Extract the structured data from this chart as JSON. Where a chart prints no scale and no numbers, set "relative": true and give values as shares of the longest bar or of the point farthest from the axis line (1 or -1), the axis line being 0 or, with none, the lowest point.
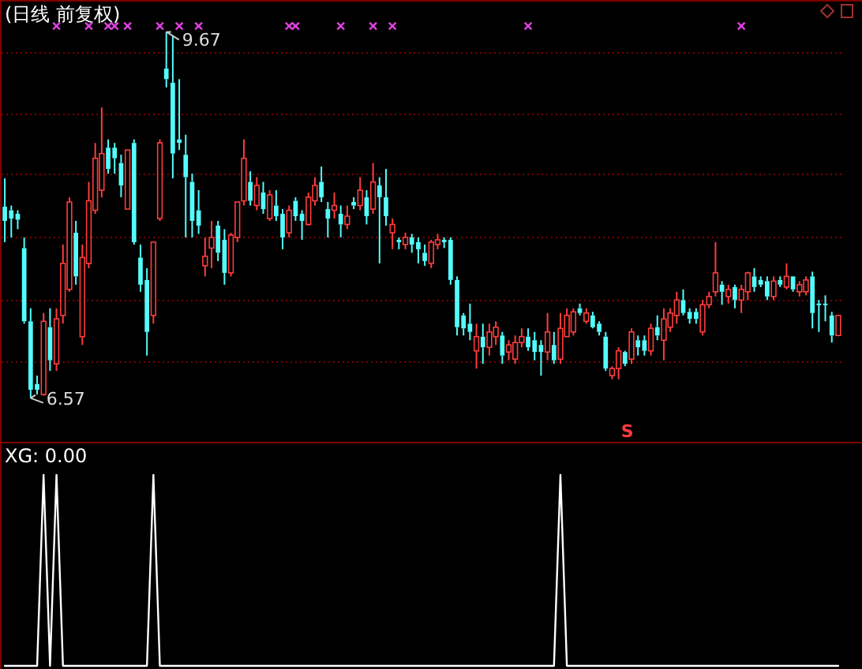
{
  "chart_data": [
    {
      "type": "candlestick",
      "title": "(日线 前复权)",
      "categories": [
        null,
        null,
        null,
        null,
        null,
        null,
        null,
        null,
        null,
        null,
        null,
        null,
        null,
        null,
        null,
        null,
        null,
        null,
        null,
        null,
        null,
        null,
        null,
        null,
        null,
        null,
        null,
        null,
        null,
        null,
        null,
        null,
        null,
        null,
        null,
        null,
        null,
        null,
        null,
        null,
        null,
        null,
        null,
        null,
        null,
        null,
        null,
        null,
        null,
        null,
        null,
        null,
        null,
        null,
        null,
        null,
        null,
        null,
        null,
        null,
        null,
        null,
        null,
        null,
        null,
        null,
        null,
        null,
        null,
        null,
        null,
        null,
        null,
        null,
        null,
        null,
        null,
        null,
        null,
        null,
        null,
        null,
        null,
        null,
        null,
        null,
        null,
        null,
        null,
        null,
        null,
        null,
        null,
        null,
        null,
        null,
        null,
        null,
        null,
        null,
        null,
        null,
        null,
        null,
        null,
        null,
        null,
        null,
        null,
        null,
        null,
        null,
        null,
        null,
        null,
        null,
        null,
        null,
        null,
        null,
        null,
        null,
        null,
        null,
        null,
        null,
        null,
        null,
        null,
        null
      ],
      "ohlc": [
        [
          8.19,
          8.43,
          7.89,
          8.07
        ],
        [
          8.16,
          8.2,
          7.93,
          8.09
        ],
        [
          8.13,
          8.16,
          8.0,
          8.08
        ],
        [
          7.84,
          7.93,
          7.2,
          7.22
        ],
        [
          7.22,
          7.33,
          6.57,
          6.64
        ],
        [
          6.69,
          6.76,
          6.6,
          6.64
        ],
        [
          6.6,
          7.29,
          6.59,
          7.22
        ],
        [
          7.17,
          7.33,
          6.8,
          6.89
        ],
        [
          6.86,
          7.33,
          6.8,
          7.24
        ],
        [
          7.27,
          7.87,
          7.2,
          7.71
        ],
        [
          7.49,
          8.27,
          7.47,
          8.23
        ],
        [
          7.97,
          8.07,
          7.53,
          7.6
        ],
        [
          7.09,
          7.87,
          7.02,
          7.76
        ],
        [
          7.71,
          8.4,
          7.67,
          8.24
        ],
        [
          8.16,
          8.73,
          8.13,
          8.6
        ],
        [
          8.33,
          9.03,
          8.27,
          8.64
        ],
        [
          8.69,
          8.76,
          8.47,
          8.51
        ],
        [
          8.69,
          8.73,
          8.47,
          8.6
        ],
        [
          8.56,
          8.63,
          8.27,
          8.37
        ],
        [
          8.17,
          8.67,
          8.17,
          8.67
        ],
        [
          8.73,
          8.76,
          7.87,
          7.89
        ],
        [
          7.76,
          7.87,
          7.47,
          7.53
        ],
        [
          7.57,
          7.67,
          6.93,
          7.13
        ],
        [
          7.27,
          7.89,
          7.2,
          7.89
        ],
        [
          8.09,
          8.76,
          8.07,
          8.73
        ],
        [
          9.36,
          9.67,
          9.2,
          9.27
        ],
        [
          9.24,
          9.64,
          8.43,
          8.64
        ],
        [
          8.76,
          9.27,
          8.67,
          8.73
        ],
        [
          8.63,
          8.8,
          7.93,
          8.44
        ],
        [
          8.4,
          8.47,
          7.93,
          8.07
        ],
        [
          8.16,
          8.33,
          7.96,
          8.03
        ],
        [
          7.69,
          7.93,
          7.6,
          7.77
        ],
        [
          7.84,
          8.07,
          7.67,
          7.93
        ],
        [
          8.03,
          8.07,
          7.73,
          7.8
        ],
        [
          7.91,
          8.0,
          7.53,
          7.63
        ],
        [
          7.63,
          7.97,
          7.6,
          7.95
        ],
        [
          7.93,
          8.23,
          7.89,
          8.23
        ],
        [
          8.24,
          8.76,
          8.2,
          8.6
        ],
        [
          8.4,
          8.49,
          8.2,
          8.24
        ],
        [
          8.2,
          8.44,
          8.16,
          8.37
        ],
        [
          8.31,
          8.4,
          8.13,
          8.17
        ],
        [
          8.09,
          8.33,
          8.07,
          8.29
        ],
        [
          8.2,
          8.33,
          8.07,
          8.11
        ],
        [
          8.13,
          8.17,
          7.83,
          7.93
        ],
        [
          7.97,
          8.2,
          7.93,
          8.16
        ],
        [
          8.24,
          8.27,
          8.07,
          8.11
        ],
        [
          8.13,
          8.16,
          7.91,
          8.07
        ],
        [
          8.04,
          8.31,
          8.03,
          8.27
        ],
        [
          8.24,
          8.44,
          8.2,
          8.37
        ],
        [
          8.4,
          8.53,
          8.23,
          8.27
        ],
        [
          8.17,
          8.23,
          7.93,
          8.09
        ],
        [
          8.16,
          8.31,
          8.09,
          8.2
        ],
        [
          8.13,
          8.2,
          7.93,
          8.04
        ],
        [
          8.04,
          8.2,
          8.0,
          8.11
        ],
        [
          8.23,
          8.27,
          8.17,
          8.2
        ],
        [
          8.2,
          8.44,
          8.16,
          8.33
        ],
        [
          8.27,
          8.33,
          8.04,
          8.11
        ],
        [
          8.17,
          8.56,
          8.13,
          8.4
        ],
        [
          8.37,
          8.44,
          7.71,
          8.27
        ],
        [
          8.27,
          8.51,
          8.03,
          8.11
        ],
        [
          7.97,
          8.09,
          7.83,
          8.04
        ],
        [
          7.91,
          7.93,
          7.83,
          7.89
        ],
        [
          7.87,
          7.97,
          7.83,
          7.93
        ],
        [
          7.93,
          7.96,
          7.8,
          7.87
        ],
        [
          7.89,
          7.93,
          7.71,
          7.83
        ],
        [
          7.8,
          7.87,
          7.69,
          7.73
        ],
        [
          7.71,
          7.91,
          7.67,
          7.89
        ],
        [
          7.87,
          7.96,
          7.83,
          7.91
        ],
        [
          7.91,
          7.93,
          7.84,
          7.89
        ],
        [
          7.91,
          7.93,
          7.53,
          7.57
        ],
        [
          7.57,
          7.6,
          7.1,
          7.17
        ],
        [
          7.27,
          7.29,
          7.1,
          7.16
        ],
        [
          7.2,
          7.37,
          7.06,
          7.13
        ],
        [
          6.97,
          7.2,
          6.82,
          7.09
        ],
        [
          7.09,
          7.2,
          6.86,
          7.0
        ],
        [
          7.0,
          7.2,
          6.93,
          7.13
        ],
        [
          7.09,
          7.22,
          7.02,
          7.17
        ],
        [
          7.1,
          7.13,
          6.86,
          6.93
        ],
        [
          6.96,
          7.06,
          6.89,
          7.02
        ],
        [
          6.9,
          7.1,
          6.86,
          7.04
        ],
        [
          7.04,
          7.16,
          7.0,
          7.09
        ],
        [
          7.09,
          7.16,
          6.97,
          7.0
        ],
        [
          7.06,
          7.13,
          6.89,
          6.96
        ],
        [
          7.02,
          7.06,
          6.76,
          6.96
        ],
        [
          6.96,
          7.29,
          6.89,
          7.13
        ],
        [
          7.02,
          7.13,
          6.86,
          6.89
        ],
        [
          6.9,
          7.29,
          6.86,
          7.16
        ],
        [
          7.09,
          7.33,
          7.09,
          7.27
        ],
        [
          7.13,
          7.33,
          7.1,
          7.3
        ],
        [
          7.33,
          7.37,
          7.27,
          7.29
        ],
        [
          7.22,
          7.33,
          7.2,
          7.29
        ],
        [
          7.27,
          7.3,
          7.16,
          7.17
        ],
        [
          7.2,
          7.22,
          7.1,
          7.13
        ],
        [
          7.09,
          7.13,
          6.8,
          6.82
        ],
        [
          6.76,
          6.84,
          6.73,
          6.82
        ],
        [
          6.82,
          7.0,
          6.73,
          6.97
        ],
        [
          6.96,
          6.97,
          6.84,
          6.86
        ],
        [
          6.9,
          7.16,
          6.86,
          7.13
        ],
        [
          7.06,
          7.1,
          6.93,
          7.0
        ],
        [
          7.06,
          7.1,
          6.93,
          6.97
        ],
        [
          6.97,
          7.2,
          6.93,
          7.16
        ],
        [
          7.17,
          7.27,
          7.06,
          7.1
        ],
        [
          7.06,
          7.33,
          6.89,
          7.24
        ],
        [
          7.17,
          7.33,
          7.13,
          7.29
        ],
        [
          7.27,
          7.47,
          7.2,
          7.4
        ],
        [
          7.4,
          7.49,
          7.27,
          7.29
        ],
        [
          7.3,
          7.33,
          7.2,
          7.24
        ],
        [
          7.3,
          7.33,
          7.2,
          7.24
        ],
        [
          7.13,
          7.4,
          7.1,
          7.36
        ],
        [
          7.36,
          7.47,
          7.33,
          7.43
        ],
        [
          7.47,
          7.89,
          7.43,
          7.63
        ],
        [
          7.53,
          7.56,
          7.36,
          7.47
        ],
        [
          7.43,
          7.53,
          7.37,
          7.49
        ],
        [
          7.51,
          7.53,
          7.33,
          7.4
        ],
        [
          7.4,
          7.53,
          7.29,
          7.49
        ],
        [
          7.47,
          7.64,
          7.4,
          7.63
        ],
        [
          7.6,
          7.67,
          7.47,
          7.51
        ],
        [
          7.57,
          7.6,
          7.51,
          7.53
        ],
        [
          7.56,
          7.6,
          7.4,
          7.43
        ],
        [
          7.43,
          7.6,
          7.4,
          7.56
        ],
        [
          7.57,
          7.6,
          7.51,
          7.53
        ],
        [
          7.51,
          7.71,
          7.49,
          7.6
        ],
        [
          7.6,
          7.6,
          7.47,
          7.49
        ],
        [
          7.47,
          7.56,
          7.43,
          7.53
        ],
        [
          7.47,
          7.6,
          7.44,
          7.57
        ],
        [
          7.6,
          7.64,
          7.16,
          7.29
        ],
        [
          7.37,
          7.4,
          7.13,
          7.36
        ],
        [
          7.37,
          7.44,
          7.22,
          7.36
        ],
        [
          7.27,
          7.3,
          7.04,
          7.1
        ],
        [
          7.1,
          7.27,
          7.1,
          7.27
        ]
      ],
      "colors": [
        "#54fcfc",
        "#54fcfc",
        "#54fcfc",
        "#54fcfc",
        "#54fcfc",
        "#54fcfc",
        "#ff3c3c",
        "#54fcfc",
        "#ff3c3c",
        "#ff3c3c",
        "#ff3c3c",
        "#54fcfc",
        "#ff3c3c",
        "#ff3c3c",
        "#ff3c3c",
        "#ff3c3c",
        "#54fcfc",
        "#54fcfc",
        "#54fcfc",
        "#ff3c3c",
        "#54fcfc",
        "#54fcfc",
        "#54fcfc",
        "#ff3c3c",
        "#ff3c3c",
        "#54fcfc",
        "#54fcfc",
        "#54fcfc",
        "#54fcfc",
        "#54fcfc",
        "#54fcfc",
        "#ff3c3c",
        "#ff3c3c",
        "#54fcfc",
        "#54fcfc",
        "#ff3c3c",
        "#ff3c3c",
        "#ff3c3c",
        "#54fcfc",
        "#ff3c3c",
        "#54fcfc",
        "#ff3c3c",
        "#54fcfc",
        "#54fcfc",
        "#ff3c3c",
        "#54fcfc",
        "#54fcfc",
        "#ff3c3c",
        "#ff3c3c",
        "#54fcfc",
        "#54fcfc",
        "#ff3c3c",
        "#54fcfc",
        "#ff3c3c",
        "#54fcfc",
        "#ff3c3c",
        "#54fcfc",
        "#ff3c3c",
        "#54fcfc",
        "#54fcfc",
        "#ff3c3c",
        "#54fcfc",
        "#ff3c3c",
        "#54fcfc",
        "#54fcfc",
        "#54fcfc",
        "#ff3c3c",
        "#ff3c3c",
        "#54fcfc",
        "#54fcfc",
        "#54fcfc",
        "#54fcfc",
        "#54fcfc",
        "#ff3c3c",
        "#54fcfc",
        "#ff3c3c",
        "#ff3c3c",
        "#54fcfc",
        "#ff3c3c",
        "#ff3c3c",
        "#ff3c3c",
        "#54fcfc",
        "#54fcfc",
        "#54fcfc",
        "#ff3c3c",
        "#54fcfc",
        "#ff3c3c",
        "#ff3c3c",
        "#ff3c3c",
        "#54fcfc",
        "#ff3c3c",
        "#54fcfc",
        "#54fcfc",
        "#54fcfc",
        "#ff3c3c",
        "#ff3c3c",
        "#54fcfc",
        "#ff3c3c",
        "#54fcfc",
        "#54fcfc",
        "#ff3c3c",
        "#54fcfc",
        "#ff3c3c",
        "#ff3c3c",
        "#ff3c3c",
        "#54fcfc",
        "#54fcfc",
        "#54fcfc",
        "#ff3c3c",
        "#ff3c3c",
        "#ff3c3c",
        "#54fcfc",
        "#ff3c3c",
        "#54fcfc",
        "#ff3c3c",
        "#ff3c3c",
        "#54fcfc",
        "#54fcfc",
        "#54fcfc",
        "#ff3c3c",
        "#54fcfc",
        "#ff3c3c",
        "#54fcfc",
        "#ff3c3c",
        "#ff3c3c",
        "#54fcfc",
        "#54fcfc",
        "#54fcfc",
        "#54fcfc",
        "#ff3c3c"
      ],
      "series": [
        {
          "type": "scatter",
          "color": "#e040e0",
          "values": [
            null,
            null,
            null,
            null,
            null,
            null,
            null,
            null,
            9.72,
            null,
            null,
            null,
            null,
            9.72,
            null,
            null,
            9.72,
            9.72,
            null,
            9.72,
            null,
            null,
            null,
            null,
            9.72,
            null,
            null,
            9.72,
            null,
            null,
            9.72,
            null,
            null,
            null,
            null,
            null,
            null,
            null,
            null,
            null,
            null,
            null,
            null,
            null,
            9.72,
            9.72,
            null,
            null,
            null,
            null,
            null,
            null,
            9.72,
            null,
            null,
            null,
            null,
            9.72,
            null,
            null,
            9.72,
            null,
            null,
            null,
            null,
            null,
            null,
            null,
            null,
            null,
            null,
            null,
            null,
            null,
            null,
            null,
            null,
            null,
            null,
            null,
            null,
            9.72,
            null,
            null,
            null,
            null,
            null,
            null,
            null,
            null,
            null,
            null,
            null,
            null,
            null,
            null,
            null,
            null,
            null,
            null,
            null,
            null,
            null,
            null,
            null,
            null,
            null,
            null,
            null,
            null,
            null,
            null,
            null,
            null,
            9.72,
            null,
            null,
            null,
            null,
            null,
            null,
            null,
            null,
            null,
            null,
            null,
            null,
            null,
            null,
            null
          ]
        }
      ],
      "marker": "cross",
      "ylim": [
        6.2,
        9.94
      ],
      "yticks": [
        {
          "value": 6.88,
          "label": null
        },
        {
          "value": 7.4,
          "label": null
        },
        {
          "value": 7.93,
          "label": null
        },
        {
          "value": 8.47,
          "label": null
        },
        {
          "value": 8.98,
          "label": null
        },
        {
          "value": 9.5,
          "label": null
        }
      ],
      "grid": "y",
      "annotations": [
        {
          "text": "9.67",
          "y": 9.67
        },
        "6.57",
        "S"
      ]
    },
    {
      "type": "line",
      "title": "XG: 0.00",
      "relative": true,
      "categories": [
        null,
        null,
        null,
        null,
        null,
        null,
        null,
        null,
        null,
        null,
        null,
        null,
        null,
        null,
        null,
        null,
        null,
        null,
        null,
        null,
        null,
        null,
        null,
        null,
        null,
        null,
        null,
        null,
        null,
        null,
        null,
        null,
        null,
        null,
        null,
        null,
        null,
        null,
        null,
        null,
        null,
        null,
        null,
        null,
        null,
        null,
        null,
        null,
        null,
        null,
        null,
        null,
        null,
        null,
        null,
        null,
        null,
        null,
        null,
        null,
        null,
        null,
        null,
        null,
        null,
        null,
        null,
        null,
        null,
        null,
        null,
        null,
        null,
        null,
        null,
        null,
        null,
        null,
        null,
        null,
        null,
        null,
        null,
        null,
        null,
        null,
        null,
        null,
        null,
        null,
        null,
        null,
        null,
        null,
        null,
        null,
        null,
        null,
        null,
        null,
        null,
        null,
        null,
        null,
        null,
        null,
        null,
        null,
        null,
        null,
        null,
        null,
        null,
        null,
        null,
        null,
        null,
        null,
        null,
        null,
        null,
        null,
        null,
        null,
        null,
        null,
        null,
        null,
        null,
        null
      ],
      "series": [
        {
          "color": "#ffffff",
          "values": [
            0,
            0,
            0,
            0,
            0,
            0,
            1,
            0,
            1,
            0,
            0,
            0,
            0,
            0,
            0,
            0,
            0,
            0,
            0,
            0,
            0,
            0,
            0,
            1,
            0,
            0,
            0,
            0,
            0,
            0,
            0,
            0,
            0,
            0,
            0,
            0,
            0,
            0,
            0,
            0,
            0,
            0,
            0,
            0,
            0,
            0,
            0,
            0,
            0,
            0,
            0,
            0,
            0,
            0,
            0,
            0,
            0,
            0,
            0,
            0,
            0,
            0,
            0,
            0,
            0,
            0,
            0,
            0,
            0,
            0,
            0,
            0,
            0,
            0,
            0,
            0,
            0,
            0,
            0,
            0,
            0,
            0,
            0,
            0,
            0,
            0,
            1,
            0,
            0,
            0,
            0,
            0,
            0,
            0,
            0,
            0,
            0,
            0,
            0,
            0,
            0,
            0,
            0,
            0,
            0,
            0,
            0,
            0,
            0,
            0,
            0,
            0,
            0,
            0,
            0,
            0,
            0,
            0,
            0,
            0,
            0,
            0,
            0,
            0,
            0,
            0,
            0,
            0,
            0,
            0
          ]
        }
      ]
    }
  ]
}
